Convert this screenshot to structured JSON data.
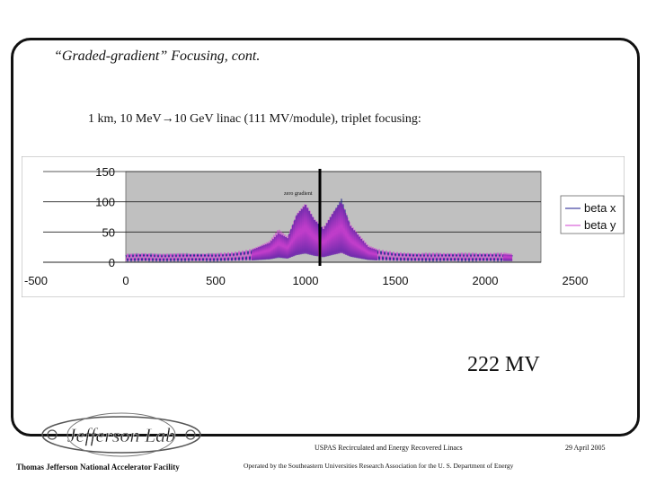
{
  "slide": {
    "title": "“Graded-gradient” Focusing, cont.",
    "subtitle": "1 km, 10 MeV→10 GeV linac (111 MV/module), triplet focusing:",
    "big_label": "222 MV"
  },
  "footer": {
    "course": "USPAS Recirculated and Energy Recovered Linacs",
    "date": "29 April 2005",
    "lab_name": "Thomas Jefferson National Accelerator Facility",
    "operated_by": "Operated by the Southeastern Universities Research Association for the U. S. Department of Energy",
    "logo_text": "Jefferson Lab"
  },
  "chart_data": {
    "type": "line",
    "xlim": [
      -500,
      2500
    ],
    "ylim": [
      0,
      150
    ],
    "x_ticks": [
      -500,
      0,
      500,
      1000,
      1500,
      2000,
      2500
    ],
    "y_ticks": [
      0,
      50,
      100,
      150
    ],
    "grid": true,
    "legend_position": "right",
    "annotation": "zero gradient",
    "marker_x": 1080,
    "series": [
      {
        "name": "beta x",
        "color": "#1a1a8c",
        "x": [
          0,
          100,
          200,
          300,
          400,
          500,
          600,
          700,
          750,
          800,
          850,
          900,
          950,
          1000,
          1050,
          1100,
          1150,
          1200,
          1250,
          1300,
          1350,
          1400,
          1500,
          1600,
          1700,
          1800,
          1900,
          2000,
          2100,
          2150
        ],
        "y": [
          12,
          14,
          12,
          13,
          14,
          13,
          15,
          20,
          26,
          32,
          48,
          40,
          78,
          95,
          70,
          55,
          80,
          105,
          60,
          42,
          25,
          20,
          15,
          14,
          13,
          14,
          13,
          14,
          13,
          12
        ]
      },
      {
        "name": "beta y",
        "color": "#d040d0",
        "x": [
          0,
          100,
          200,
          300,
          400,
          500,
          600,
          700,
          750,
          800,
          850,
          900,
          950,
          1000,
          1050,
          1100,
          1150,
          1200,
          1250,
          1300,
          1350,
          1400,
          1500,
          1600,
          1700,
          1800,
          1900,
          2000,
          2100,
          2150
        ],
        "y": [
          14,
          15,
          14,
          15,
          14,
          15,
          17,
          22,
          28,
          35,
          55,
          42,
          80,
          98,
          72,
          58,
          82,
          100,
          63,
          45,
          28,
          22,
          17,
          15,
          16,
          15,
          16,
          15,
          16,
          14
        ]
      }
    ]
  }
}
